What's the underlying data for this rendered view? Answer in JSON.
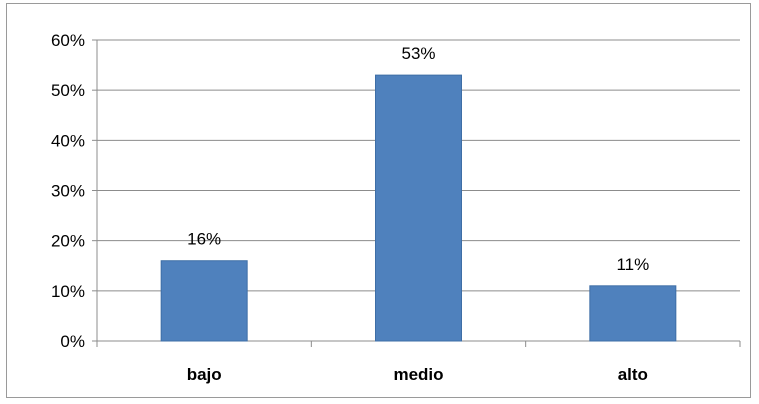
{
  "chart_data": {
    "type": "bar",
    "categories": [
      "bajo",
      "medio",
      "alto"
    ],
    "values": [
      0.16,
      0.53,
      0.11
    ],
    "data_labels": [
      "16%",
      "53%",
      "11%"
    ],
    "y_ticks": [
      {
        "value": 0.0,
        "label": "0%"
      },
      {
        "value": 0.1,
        "label": "10%"
      },
      {
        "value": 0.2,
        "label": "20%"
      },
      {
        "value": 0.3,
        "label": "30%"
      },
      {
        "value": 0.4,
        "label": "40%"
      },
      {
        "value": 0.5,
        "label": "50%"
      },
      {
        "value": 0.6,
        "label": "60%"
      }
    ],
    "ylim": [
      0,
      0.6
    ],
    "title": "",
    "xlabel": "",
    "ylabel": "",
    "grid": true,
    "legend": "none",
    "colors": {
      "bar": "#4f81bd",
      "bar_edge": "#3e6ea6",
      "grid": "#8c8c8c",
      "axis": "#8c8c8c"
    }
  }
}
